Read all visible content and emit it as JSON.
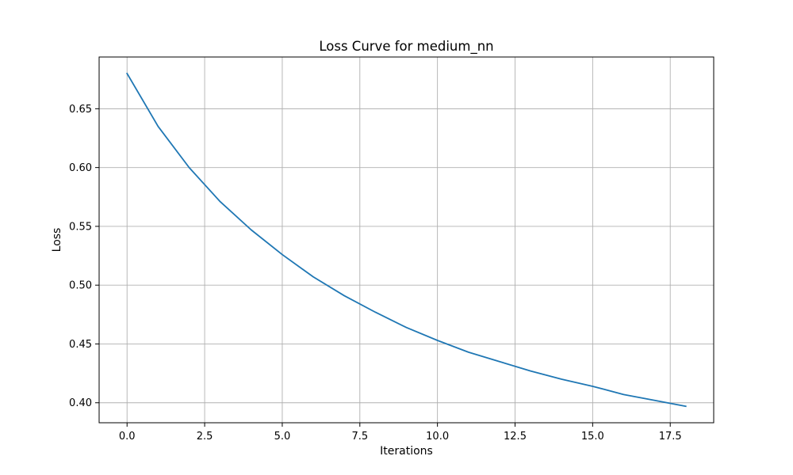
{
  "chart_data": {
    "type": "line",
    "title": "Loss Curve for medium_nn",
    "xlabel": "Iterations",
    "ylabel": "Loss",
    "xlim": [
      -0.9,
      18.9
    ],
    "ylim": [
      0.383,
      0.694
    ],
    "xticks": [
      0.0,
      2.5,
      5.0,
      7.5,
      10.0,
      12.5,
      15.0,
      17.5
    ],
    "xtick_labels": [
      "0.0",
      "2.5",
      "5.0",
      "7.5",
      "10.0",
      "12.5",
      "15.0",
      "17.5"
    ],
    "yticks": [
      0.4,
      0.45,
      0.5,
      0.55,
      0.6,
      0.65
    ],
    "ytick_labels": [
      "0.40",
      "0.45",
      "0.50",
      "0.55",
      "0.60",
      "0.65"
    ],
    "grid": true,
    "series": [
      {
        "color": "#1f77b4",
        "x": [
          0,
          1,
          2,
          3,
          4,
          5,
          6,
          7,
          8,
          9,
          10,
          11,
          12,
          13,
          14,
          15,
          16,
          17,
          18
        ],
        "y": [
          0.68,
          0.635,
          0.6,
          0.571,
          0.547,
          0.526,
          0.507,
          0.491,
          0.477,
          0.464,
          0.453,
          0.443,
          0.435,
          0.427,
          0.42,
          0.414,
          0.407,
          0.402,
          0.397
        ]
      }
    ]
  }
}
